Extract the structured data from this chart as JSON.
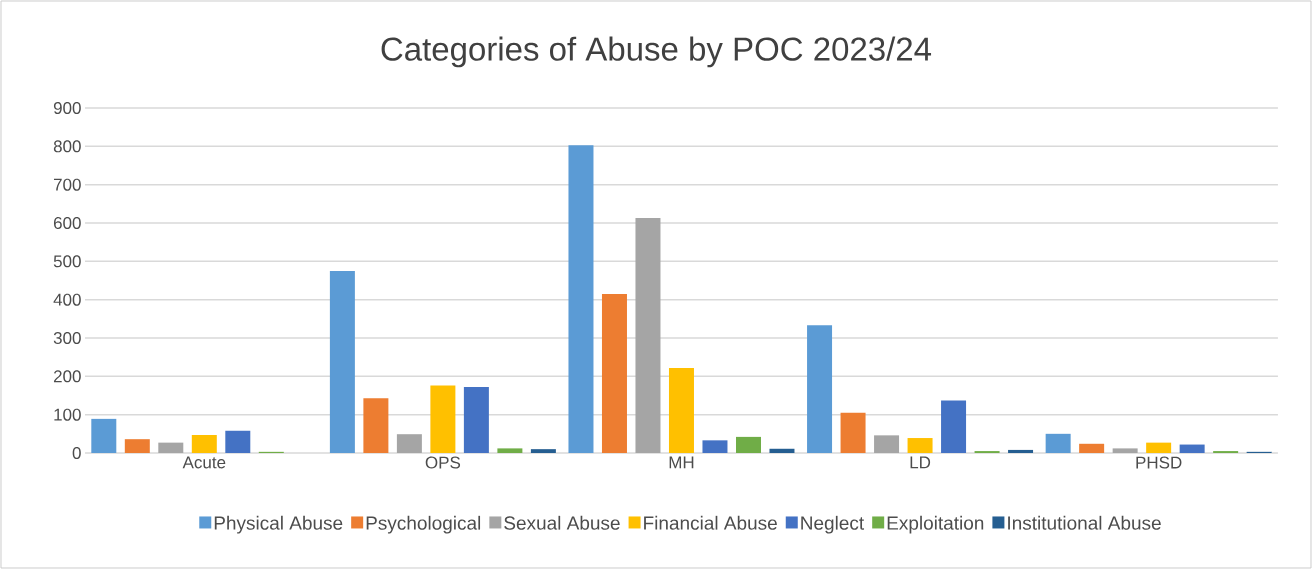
{
  "chart_data": {
    "type": "bar",
    "title": "Categories of Abuse by POC 2023/24",
    "categories": [
      "Acute",
      "OPS",
      "MH",
      "LD",
      "PHSD"
    ],
    "series": [
      {
        "name": "Physical Abuse",
        "color": "#5b9bd5",
        "values": [
          89,
          475,
          803,
          333,
          50
        ]
      },
      {
        "name": "Psychological",
        "color": "#ed7d31",
        "values": [
          36,
          143,
          415,
          105,
          24
        ]
      },
      {
        "name": "Sexual Abuse",
        "color": "#a5a5a5",
        "values": [
          27,
          49,
          613,
          46,
          12
        ]
      },
      {
        "name": "Financial Abuse",
        "color": "#ffc000",
        "values": [
          47,
          176,
          222,
          39,
          27
        ]
      },
      {
        "name": "Neglect",
        "color": "#4472c4",
        "values": [
          58,
          172,
          33,
          137,
          22
        ]
      },
      {
        "name": "Exploitation",
        "color": "#70ad47",
        "values": [
          3,
          12,
          42,
          5,
          5
        ]
      },
      {
        "name": "Institutional Abuse",
        "color": "#255e91",
        "values": [
          null,
          10,
          11,
          8,
          3
        ]
      }
    ],
    "ylim": [
      0,
      900
    ],
    "yticks": [
      0,
      100,
      200,
      300,
      400,
      500,
      600,
      700,
      800,
      900
    ],
    "grid": "y",
    "legend": "bottom"
  }
}
